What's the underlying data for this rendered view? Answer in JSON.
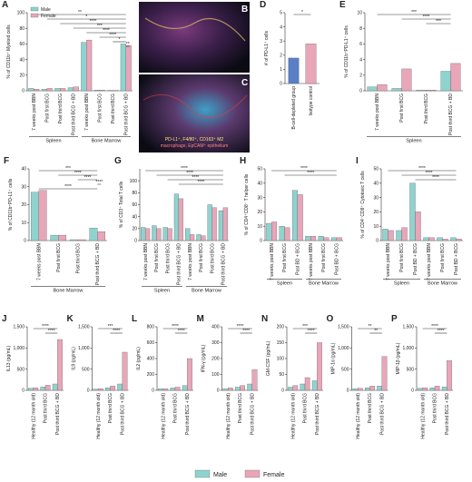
{
  "chart_data": [
    {
      "type": "bar",
      "panel": "A",
      "ylabel": "% of CD11b⁺ Myeloid cells",
      "categories": [
        "7 weeks post BBN",
        "Post first BCG",
        "Post third BCG",
        "Post third BCG + BD",
        "7 weeks post BBN",
        "Post first BCG",
        "Post third BCG",
        "Post third BCG + BD"
      ],
      "group_labels": [
        "Spleen",
        "Bone Marrow"
      ],
      "series": [
        {
          "name": "Male",
          "color": "#8fd3cf",
          "values": [
            3,
            2,
            3,
            4,
            62,
            1,
            0.5,
            60
          ]
        },
        {
          "name": "Female",
          "color": "#e8a6b8",
          "values": [
            2,
            3,
            3,
            5,
            65,
            1,
            0.5,
            58
          ]
        }
      ],
      "ylim": [
        0,
        100
      ],
      "yticks": [
        0,
        20,
        40,
        60,
        80,
        100
      ],
      "annotations": [
        "**",
        "*",
        "****",
        "***",
        "****",
        "****",
        "*",
        "**"
      ]
    },
    {
      "type": "bar",
      "panel": "D",
      "ylabel": "# of PD-L1⁺ cells",
      "categories": [
        "B-cell-depleted group",
        "Isotype control"
      ],
      "values": [
        1.8,
        2.8
      ],
      "colors": [
        "#5b7fc7",
        "#e8a6b8"
      ],
      "ylim": [
        0,
        5
      ],
      "yticks": [
        0,
        1,
        2,
        3,
        4,
        5
      ],
      "annotations": [
        "*"
      ]
    },
    {
      "type": "bar",
      "panel": "E",
      "ylabel": "% of CD11b⁺PD-L1⁺ cells",
      "categories": [
        "7 weeks post BBN",
        "Post first BCG",
        "Post third BCG",
        "Post third BCG + BD"
      ],
      "group_labels": [
        "Spleen"
      ],
      "series": [
        {
          "name": "Male",
          "color": "#8fd3cf",
          "values": [
            0.5,
            0.3,
            0.1,
            2.5
          ]
        },
        {
          "name": "Female",
          "color": "#e8a6b8",
          "values": [
            0.8,
            2.8,
            0.1,
            3.5
          ]
        }
      ],
      "ylim": [
        0,
        10
      ],
      "yticks": [
        0,
        2,
        4,
        6,
        8,
        10
      ],
      "annotations": [
        "***",
        "****",
        "***"
      ]
    },
    {
      "type": "bar",
      "panel": "F",
      "ylabel": "% of CD11b⁺PD-L1⁺ cells",
      "categories": [
        "7 weeks post BBN",
        "Post first BCG",
        "Post third BCG",
        "Post third BCG + BD"
      ],
      "group_labels": [
        "Bone Marrow"
      ],
      "series": [
        {
          "name": "Male",
          "color": "#8fd3cf",
          "values": [
            27,
            3,
            0.5,
            7
          ]
        },
        {
          "name": "Female",
          "color": "#e8a6b8",
          "values": [
            28,
            3,
            0.5,
            5
          ]
        }
      ],
      "ylim": [
        0,
        40
      ],
      "yticks": [
        0,
        10,
        20,
        30,
        40
      ],
      "annotations": [
        "***",
        "****",
        "****",
        "****",
        "****"
      ]
    },
    {
      "type": "bar",
      "panel": "G",
      "ylabel": "% of CD3⁺ Total T cells",
      "categories": [
        "7 weeks post BBN",
        "Post first BCG",
        "Post third BCG",
        "Post third BCG + BD",
        "7 weeks post BBN",
        "Post first BCG",
        "Post third BCG",
        "Post third BCG + BD"
      ],
      "group_labels": [
        "Spleen",
        "Bone Marrow"
      ],
      "series": [
        {
          "name": "Male",
          "color": "#8fd3cf",
          "values": [
            22,
            25,
            22,
            78,
            20,
            10,
            60,
            50
          ]
        },
        {
          "name": "Female",
          "color": "#e8a6b8",
          "values": [
            20,
            20,
            20,
            70,
            10,
            8,
            55,
            55
          ]
        }
      ],
      "ylim": [
        0,
        120
      ],
      "yticks": [
        0,
        20,
        40,
        60,
        80,
        100
      ],
      "annotations": [
        "****",
        "****",
        "****",
        "****"
      ]
    },
    {
      "type": "bar",
      "panel": "H",
      "ylabel": "% of CD4⁺CD8⁻ T helper cells",
      "categories": [
        "7 weeks post BBN",
        "Post first BCG",
        "Post BD + BCG",
        "7 weeks post BBN",
        "Post first BCG",
        "Post BD + BCG"
      ],
      "group_labels": [
        "Spleen",
        "Bone Marrow"
      ],
      "series": [
        {
          "name": "Male",
          "color": "#8fd3cf",
          "values": [
            12,
            10,
            35,
            3,
            3,
            2
          ]
        },
        {
          "name": "Female",
          "color": "#e8a6b8",
          "values": [
            13,
            9,
            32,
            3,
            2,
            2
          ]
        }
      ],
      "ylim": [
        0,
        50
      ],
      "yticks": [
        0,
        10,
        20,
        30,
        40,
        50
      ],
      "annotations": [
        "****",
        "****"
      ]
    },
    {
      "type": "bar",
      "panel": "I",
      "ylabel": "% of CD4⁻CD8⁺ Cytotoxic T cells",
      "categories": [
        "7 weeks post BBN",
        "Post first BCG",
        "Post BD + BCG",
        "7 weeks post BBN",
        "Post first BCG",
        "Post BD + BCG"
      ],
      "group_labels": [
        "Spleen",
        "Bone Marrow"
      ],
      "series": [
        {
          "name": "Male",
          "color": "#8fd3cf",
          "values": [
            8,
            7,
            40,
            2,
            2,
            2
          ]
        },
        {
          "name": "Female",
          "color": "#e8a6b8",
          "values": [
            7,
            9,
            20,
            2,
            1,
            1
          ]
        }
      ],
      "ylim": [
        0,
        50
      ],
      "yticks": [
        0,
        10,
        20,
        30,
        40,
        50
      ],
      "annotations": [
        "****",
        "****",
        "****"
      ]
    },
    {
      "type": "bar",
      "panel": "J",
      "ylabel": "IL13 (pg/mL)",
      "categories": [
        "Healthy (12 month old)",
        "Post third BCG",
        "Post third BCG + BD"
      ],
      "series": [
        {
          "name": "Male",
          "color": "#8fd3cf",
          "values": [
            50,
            80,
            150
          ]
        },
        {
          "name": "Female",
          "color": "#e8a6b8",
          "values": [
            60,
            120,
            1200
          ]
        }
      ],
      "ylim": [
        0,
        1500
      ],
      "yticks": [
        0,
        500,
        {
          "value": 1000,
          "label": "1,000"
        },
        {
          "value": 1500,
          "label": "1,500"
        }
      ],
      "annotations": [
        "****",
        "****"
      ]
    },
    {
      "type": "bar",
      "panel": "K",
      "ylabel": "IL9 (pg/mL)",
      "categories": [
        "Healthy (12 month old)",
        "Post third BCG",
        "Post third BCG + BD"
      ],
      "series": [
        {
          "name": "Male",
          "color": "#8fd3cf",
          "values": [
            30,
            60,
            150
          ]
        },
        {
          "name": "Female",
          "color": "#e8a6b8",
          "values": [
            40,
            100,
            900
          ]
        }
      ],
      "ylim": [
        0,
        1500
      ],
      "yticks": [
        0,
        500,
        {
          "value": 1000,
          "label": "1,000"
        },
        {
          "value": 1500,
          "label": "1,500"
        }
      ],
      "annotations": [
        "***",
        "****"
      ]
    },
    {
      "type": "bar",
      "panel": "L",
      "ylabel": "IL2 (pg/mL)",
      "categories": [
        "Healthy (12 month old)",
        "Post third BCG",
        "Post third BCG + BD"
      ],
      "series": [
        {
          "name": "Male",
          "color": "#8fd3cf",
          "values": [
            20,
            30,
            60
          ]
        },
        {
          "name": "Female",
          "color": "#e8a6b8",
          "values": [
            20,
            40,
            400
          ]
        }
      ],
      "ylim": [
        0,
        800
      ],
      "yticks": [
        0,
        200,
        400,
        600,
        800
      ],
      "annotations": [
        "****",
        "****"
      ]
    },
    {
      "type": "bar",
      "panel": "M",
      "ylabel": "IFN-γ (pg/mL)",
      "categories": [
        "Healthy (12 month old)",
        "Post third BCG",
        "Post third BCG + BD"
      ],
      "series": [
        {
          "name": "Male",
          "color": "#8fd3cf",
          "values": [
            10,
            20,
            40
          ]
        },
        {
          "name": "Female",
          "color": "#e8a6b8",
          "values": [
            15,
            30,
            130
          ]
        }
      ],
      "ylim": [
        0,
        400
      ],
      "yticks": [
        0,
        100,
        200,
        300,
        400
      ],
      "annotations": [
        "****",
        "****"
      ]
    },
    {
      "type": "bar",
      "panel": "N",
      "ylabel": "GM-CSF (pg/mL)",
      "categories": [
        "Healthy (12 month old)",
        "Post third BCG",
        "Post third BCG + BD"
      ],
      "series": [
        {
          "name": "Male",
          "color": "#8fd3cf",
          "values": [
            10,
            20,
            30
          ]
        },
        {
          "name": "Female",
          "color": "#e8a6b8",
          "values": [
            15,
            40,
            150
          ]
        }
      ],
      "ylim": [
        0,
        200
      ],
      "yticks": [
        0,
        50,
        100,
        150,
        200
      ],
      "annotations": [
        "***",
        "****"
      ]
    },
    {
      "type": "bar",
      "panel": "O",
      "ylabel": "MIP-1α (pg/mL)",
      "categories": [
        "Healthy (12 month old)",
        "Post third BCG",
        "Post third BCG + BD"
      ],
      "series": [
        {
          "name": "Male",
          "color": "#8fd3cf",
          "values": [
            40,
            60,
            100
          ]
        },
        {
          "name": "Female",
          "color": "#e8a6b8",
          "values": [
            50,
            100,
            800
          ]
        }
      ],
      "ylim": [
        0,
        1500
      ],
      "yticks": [
        0,
        500,
        {
          "value": 1000,
          "label": "1,000"
        },
        {
          "value": 1500,
          "label": "1,500"
        }
      ],
      "annotations": [
        "**",
        "**"
      ]
    },
    {
      "type": "bar",
      "panel": "P",
      "ylabel": "MIP-1β (pg/mL)",
      "categories": [
        "Healthy (12 month old)",
        "Post third BCG",
        "Post third BCG + BD"
      ],
      "series": [
        {
          "name": "Male",
          "color": "#8fd3cf",
          "values": [
            50,
            60,
            80
          ]
        },
        {
          "name": "Female",
          "color": "#e8a6b8",
          "values": [
            60,
            100,
            700
          ]
        }
      ],
      "ylim": [
        0,
        1500
      ],
      "yticks": [
        0,
        500,
        {
          "value": 1000,
          "label": "1,000"
        },
        {
          "value": 1500,
          "label": "1,500"
        }
      ],
      "annotations": [
        "****",
        "****"
      ]
    }
  ],
  "image_panels": {
    "labels": [
      "B",
      "C"
    ],
    "caption": [
      "PD-L1⁺, F4/80⁺, CD163⁺ M2",
      "macrophage, EpCAM⁺ epithelium"
    ]
  }
}
